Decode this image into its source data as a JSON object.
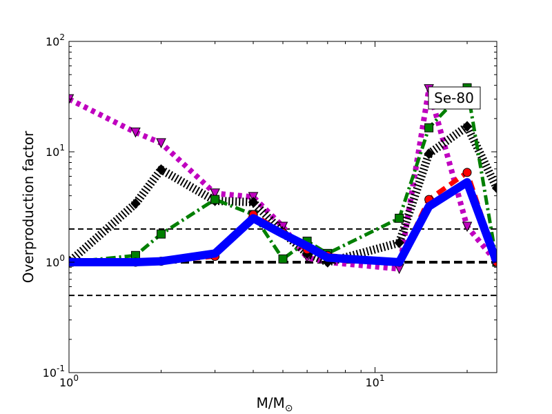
{
  "chart_data": {
    "type": "line",
    "xscale": "log",
    "yscale": "log",
    "xlim": [
      1,
      25
    ],
    "ylim": [
      0.1,
      100
    ],
    "xlabel": "M/M",
    "xlabel_subscript": "⊙",
    "ylabel": "Overproduction factor",
    "x_tick_labels": [
      {
        "value": 1,
        "base": "10",
        "exp": "0"
      },
      {
        "value": 10,
        "base": "10",
        "exp": "1"
      }
    ],
    "y_tick_labels": [
      {
        "value": 0.1,
        "base": "10",
        "exp": "-1"
      },
      {
        "value": 1,
        "base": "10",
        "exp": "0"
      },
      {
        "value": 10,
        "base": "10",
        "exp": "1"
      },
      {
        "value": 100,
        "base": "10",
        "exp": "2"
      }
    ],
    "annotation": "Se-80",
    "annotation_position": "top-right",
    "reference_lines": [
      {
        "y": 2,
        "style": "dashed",
        "weight": "thin"
      },
      {
        "y": 1,
        "style": "dashed",
        "weight": "thick"
      },
      {
        "y": 0.5,
        "style": "dashed",
        "weight": "thin"
      }
    ],
    "series": [
      {
        "color": "#bf00bf",
        "dash": "dotted",
        "marker": "triangle-down",
        "x": [
          1,
          1.65,
          2,
          3,
          4,
          5,
          6,
          7,
          12,
          15,
          20,
          25
        ],
        "y": [
          30,
          15,
          12,
          4.2,
          3.9,
          2.1,
          1.1,
          1.0,
          0.87,
          37,
          2.1,
          1.0
        ]
      },
      {
        "color": "#000000",
        "dash": "hatched",
        "marker": "diamond",
        "x": [
          1,
          1.65,
          2,
          3,
          4,
          5,
          6,
          7,
          12,
          15,
          20,
          25
        ],
        "y": [
          1.0,
          3.4,
          6.9,
          3.6,
          3.5,
          1.85,
          1.2,
          1.0,
          1.5,
          9.6,
          17,
          4.7
        ]
      },
      {
        "color": "#007f00",
        "dash": "dashdot",
        "marker": "square",
        "x": [
          1,
          1.65,
          2,
          3,
          4,
          5,
          6,
          7,
          12,
          15,
          20,
          25
        ],
        "y": [
          1.0,
          1.15,
          1.8,
          3.7,
          2.7,
          1.07,
          1.55,
          1.2,
          2.5,
          16.5,
          38,
          1.0
        ]
      },
      {
        "color": "#ff0000",
        "dash": "dashed",
        "marker": "circle",
        "x": [
          1,
          1.65,
          2,
          3,
          4,
          5,
          6,
          7,
          12,
          15,
          20,
          25
        ],
        "y": [
          1.0,
          1.0,
          1.02,
          1.13,
          2.7,
          1.85,
          1.3,
          1.15,
          1.0,
          3.7,
          6.5,
          1.0
        ]
      },
      {
        "color": "#0000ff",
        "dash": "solid",
        "marker": "none",
        "x": [
          1,
          1.65,
          2,
          3,
          4,
          5,
          6,
          7,
          12,
          15,
          20,
          25
        ],
        "y": [
          1.0,
          1.0,
          1.02,
          1.2,
          2.5,
          1.8,
          1.4,
          1.1,
          1.0,
          3.2,
          5.3,
          1.0
        ]
      }
    ]
  }
}
